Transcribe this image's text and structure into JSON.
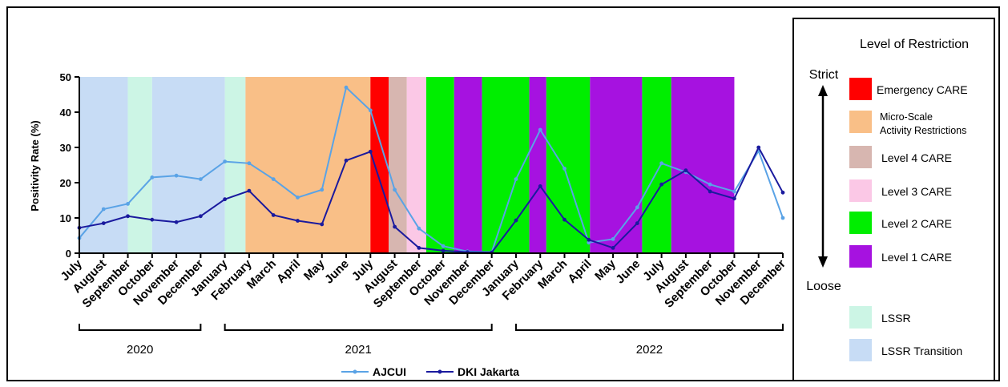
{
  "chart_data": {
    "type": "line",
    "ylabel": "Positivity Rate (%)",
    "ylim": [
      0,
      50
    ],
    "yticks": [
      0,
      10,
      20,
      30,
      40,
      50
    ],
    "x": [
      "July",
      "August",
      "September",
      "October",
      "November",
      "December",
      "January",
      "February",
      "March",
      "April",
      "May",
      "June",
      "July",
      "August",
      "September",
      "October",
      "November",
      "December",
      "January",
      "February",
      "March",
      "April",
      "May",
      "June",
      "July",
      "August",
      "September",
      "October",
      "November",
      "December"
    ],
    "years": [
      {
        "label": "2020",
        "from": 0,
        "to": 5
      },
      {
        "label": "2021",
        "from": 6,
        "to": 17
      },
      {
        "label": "2022",
        "from": 18,
        "to": 29
      }
    ],
    "series": [
      {
        "name": "AJCUI",
        "color": "#5aa3e6",
        "values": [
          4.3,
          12.5,
          14,
          21.5,
          22,
          21,
          26,
          25.5,
          21,
          15.8,
          18,
          47,
          40.5,
          18,
          7,
          2,
          0.5,
          0.3,
          21,
          35,
          24,
          3,
          4,
          13,
          25.5,
          23,
          19.5,
          17.5,
          29,
          10
        ]
      },
      {
        "name": "DKI Jakarta",
        "color": "#1a1a9e",
        "values": [
          7.2,
          8.5,
          10.5,
          9.5,
          8.8,
          10.5,
          15.3,
          17.7,
          10.8,
          9.2,
          8.2,
          26.3,
          28.8,
          7.5,
          1.5,
          0.7,
          0.3,
          0.2,
          9.3,
          19,
          9.5,
          3.8,
          1.5,
          8.5,
          19.5,
          23.5,
          17.5,
          15.5,
          30,
          17.2
        ]
      }
    ],
    "restrictions": [
      {
        "level": "lssr-transition",
        "from": 0,
        "to": 2
      },
      {
        "level": "lssr",
        "from": 2,
        "to": 3
      },
      {
        "level": "lssr-transition",
        "from": 3,
        "to": 6
      },
      {
        "level": "lssr",
        "from": 6,
        "to": 6.85
      },
      {
        "level": "micro",
        "from": 6.85,
        "to": 12
      },
      {
        "level": "emergency",
        "from": 12,
        "to": 12.75
      },
      {
        "level": "level4",
        "from": 12.75,
        "to": 13.5
      },
      {
        "level": "level3",
        "from": 13.5,
        "to": 14.3
      },
      {
        "level": "level2",
        "from": 14.3,
        "to": 15.45
      },
      {
        "level": "level1",
        "from": 15.45,
        "to": 16.6
      },
      {
        "level": "level2",
        "from": 16.6,
        "to": 18.55
      },
      {
        "level": "level1",
        "from": 18.55,
        "to": 19.25
      },
      {
        "level": "level2",
        "from": 19.25,
        "to": 21.05
      },
      {
        "level": "level1",
        "from": 21.05,
        "to": 23.2
      },
      {
        "level": "level2",
        "from": 23.2,
        "to": 24.4
      },
      {
        "level": "level1",
        "from": 24.4,
        "to": 27.0
      }
    ],
    "grid": false
  },
  "legend": {
    "title": "Level of Restriction",
    "strict": "Strict",
    "loose": "Loose",
    "items": [
      {
        "key": "emergency",
        "label": "Emergency CARE",
        "color": "#ff0000"
      },
      {
        "key": "micro",
        "label_line1": "Micro-Scale",
        "label_line2": "Activity Restrictions",
        "color": "#f9bf87"
      },
      {
        "key": "level4",
        "label": "Level 4 CARE",
        "color": "#d7b6b0"
      },
      {
        "key": "level3",
        "label": "Level 3 CARE",
        "color": "#fbc8e6"
      },
      {
        "key": "level2",
        "label": "Level 2 CARE",
        "color": "#00ee00"
      },
      {
        "key": "level1",
        "label": "Level 1 CARE",
        "color": "#a612e0"
      },
      {
        "key": "lssr",
        "label": "LSSR",
        "color": "#ccf5e5"
      },
      {
        "key": "lssr-transition",
        "label": "LSSR Transition",
        "color": "#c7dcf5"
      }
    ]
  },
  "series_legend": [
    {
      "name": "AJCUI",
      "color": "#5aa3e6"
    },
    {
      "name": "DKI Jakarta",
      "color": "#1a1a9e"
    }
  ]
}
